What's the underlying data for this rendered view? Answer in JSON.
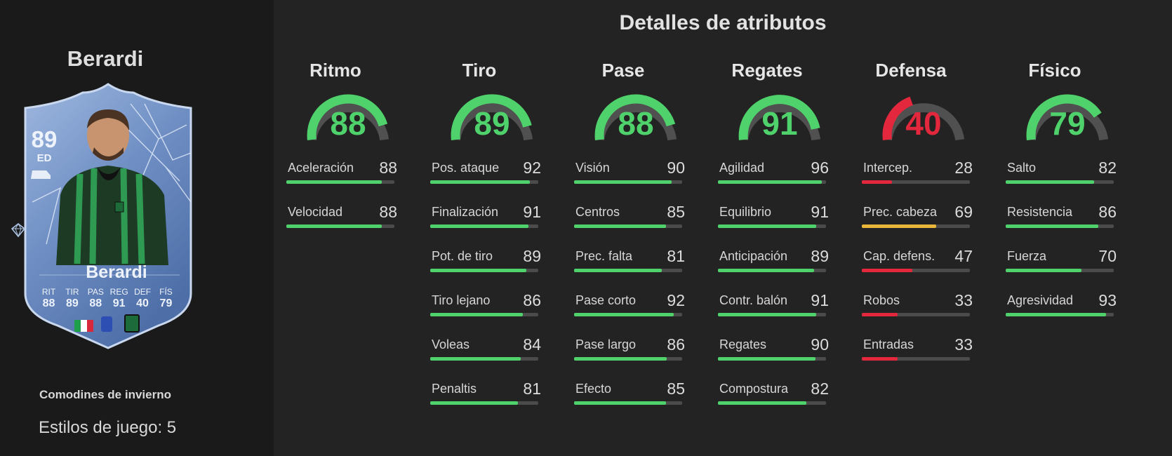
{
  "colors": {
    "high": "#4fd26b",
    "mid": "#e9b83b",
    "low": "#e3283d",
    "track": "#4b4b4b",
    "gauge_track": "#505050"
  },
  "player": {
    "name": "Berardi",
    "card": {
      "rating": "89",
      "position": "ED",
      "name": "Berardi",
      "stats": [
        {
          "label": "RIT",
          "value": "88"
        },
        {
          "label": "TIR",
          "value": "89"
        },
        {
          "label": "PAS",
          "value": "88"
        },
        {
          "label": "REG",
          "value": "91"
        },
        {
          "label": "DEF",
          "value": "40"
        },
        {
          "label": "FÍS",
          "value": "79"
        }
      ]
    },
    "promo": "Comodines de invierno",
    "playstyles": "Estilos de juego: 5"
  },
  "attributes": {
    "title": "Detalles de atributos",
    "categories": [
      {
        "name": "Ritmo",
        "value": 88,
        "stats": [
          {
            "name": "Aceleración",
            "value": 88
          },
          {
            "name": "Velocidad",
            "value": 88
          }
        ]
      },
      {
        "name": "Tiro",
        "value": 89,
        "stats": [
          {
            "name": "Pos. ataque",
            "value": 92
          },
          {
            "name": "Finalización",
            "value": 91
          },
          {
            "name": "Pot. de tiro",
            "value": 89
          },
          {
            "name": "Tiro lejano",
            "value": 86
          },
          {
            "name": "Voleas",
            "value": 84
          },
          {
            "name": "Penaltis",
            "value": 81
          }
        ]
      },
      {
        "name": "Pase",
        "value": 88,
        "stats": [
          {
            "name": "Visión",
            "value": 90
          },
          {
            "name": "Centros",
            "value": 85
          },
          {
            "name": "Prec. falta",
            "value": 81
          },
          {
            "name": "Pase corto",
            "value": 92
          },
          {
            "name": "Pase largo",
            "value": 86
          },
          {
            "name": "Efecto",
            "value": 85
          }
        ]
      },
      {
        "name": "Regates",
        "value": 91,
        "stats": [
          {
            "name": "Agilidad",
            "value": 96
          },
          {
            "name": "Equilibrio",
            "value": 91
          },
          {
            "name": "Anticipación",
            "value": 89
          },
          {
            "name": "Contr. balón",
            "value": 91
          },
          {
            "name": "Regates",
            "value": 90
          },
          {
            "name": "Compostura",
            "value": 82
          }
        ]
      },
      {
        "name": "Defensa",
        "value": 40,
        "stats": [
          {
            "name": "Intercep.",
            "value": 28
          },
          {
            "name": "Prec. cabeza",
            "value": 69
          },
          {
            "name": "Cap. defens.",
            "value": 47
          },
          {
            "name": "Robos",
            "value": 33
          },
          {
            "name": "Entradas",
            "value": 33
          }
        ]
      },
      {
        "name": "Físico",
        "value": 79,
        "stats": [
          {
            "name": "Salto",
            "value": 82
          },
          {
            "name": "Resistencia",
            "value": 86
          },
          {
            "name": "Fuerza",
            "value": 70
          },
          {
            "name": "Agresividad",
            "value": 93
          }
        ]
      }
    ]
  }
}
